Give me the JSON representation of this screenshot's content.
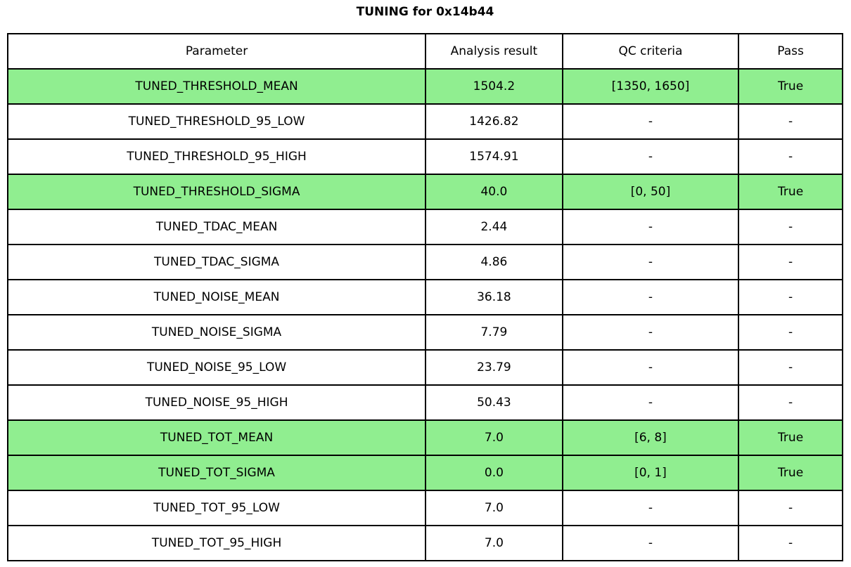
{
  "title": "TUNING for 0x14b44",
  "colors": {
    "highlight": "#90EE90",
    "border": "#000000",
    "background": "#FFFFFF",
    "text": "#000000"
  },
  "chart_data": {
    "type": "table",
    "title": "TUNING for 0x14b44",
    "columns": [
      "Parameter",
      "Analysis result",
      "QC criteria",
      "Pass"
    ],
    "rows": [
      {
        "parameter": "TUNED_THRESHOLD_MEAN",
        "analysis_result": "1504.2",
        "qc_criteria": "[1350, 1650]",
        "pass": "True",
        "highlighted": true
      },
      {
        "parameter": "TUNED_THRESHOLD_95_LOW",
        "analysis_result": "1426.82",
        "qc_criteria": "-",
        "pass": "-",
        "highlighted": false
      },
      {
        "parameter": "TUNED_THRESHOLD_95_HIGH",
        "analysis_result": "1574.91",
        "qc_criteria": "-",
        "pass": "-",
        "highlighted": false
      },
      {
        "parameter": "TUNED_THRESHOLD_SIGMA",
        "analysis_result": "40.0",
        "qc_criteria": "[0, 50]",
        "pass": "True",
        "highlighted": true
      },
      {
        "parameter": "TUNED_TDAC_MEAN",
        "analysis_result": "2.44",
        "qc_criteria": "-",
        "pass": "-",
        "highlighted": false
      },
      {
        "parameter": "TUNED_TDAC_SIGMA",
        "analysis_result": "4.86",
        "qc_criteria": "-",
        "pass": "-",
        "highlighted": false
      },
      {
        "parameter": "TUNED_NOISE_MEAN",
        "analysis_result": "36.18",
        "qc_criteria": "-",
        "pass": "-",
        "highlighted": false
      },
      {
        "parameter": "TUNED_NOISE_SIGMA",
        "analysis_result": "7.79",
        "qc_criteria": "-",
        "pass": "-",
        "highlighted": false
      },
      {
        "parameter": "TUNED_NOISE_95_LOW",
        "analysis_result": "23.79",
        "qc_criteria": "-",
        "pass": "-",
        "highlighted": false
      },
      {
        "parameter": "TUNED_NOISE_95_HIGH",
        "analysis_result": "50.43",
        "qc_criteria": "-",
        "pass": "-",
        "highlighted": false
      },
      {
        "parameter": "TUNED_TOT_MEAN",
        "analysis_result": "7.0",
        "qc_criteria": "[6, 8]",
        "pass": "True",
        "highlighted": true
      },
      {
        "parameter": "TUNED_TOT_SIGMA",
        "analysis_result": "0.0",
        "qc_criteria": "[0, 1]",
        "pass": "True",
        "highlighted": true
      },
      {
        "parameter": "TUNED_TOT_95_LOW",
        "analysis_result": "7.0",
        "qc_criteria": "-",
        "pass": "-",
        "highlighted": false
      },
      {
        "parameter": "TUNED_TOT_95_HIGH",
        "analysis_result": "7.0",
        "qc_criteria": "-",
        "pass": "-",
        "highlighted": false
      }
    ]
  }
}
